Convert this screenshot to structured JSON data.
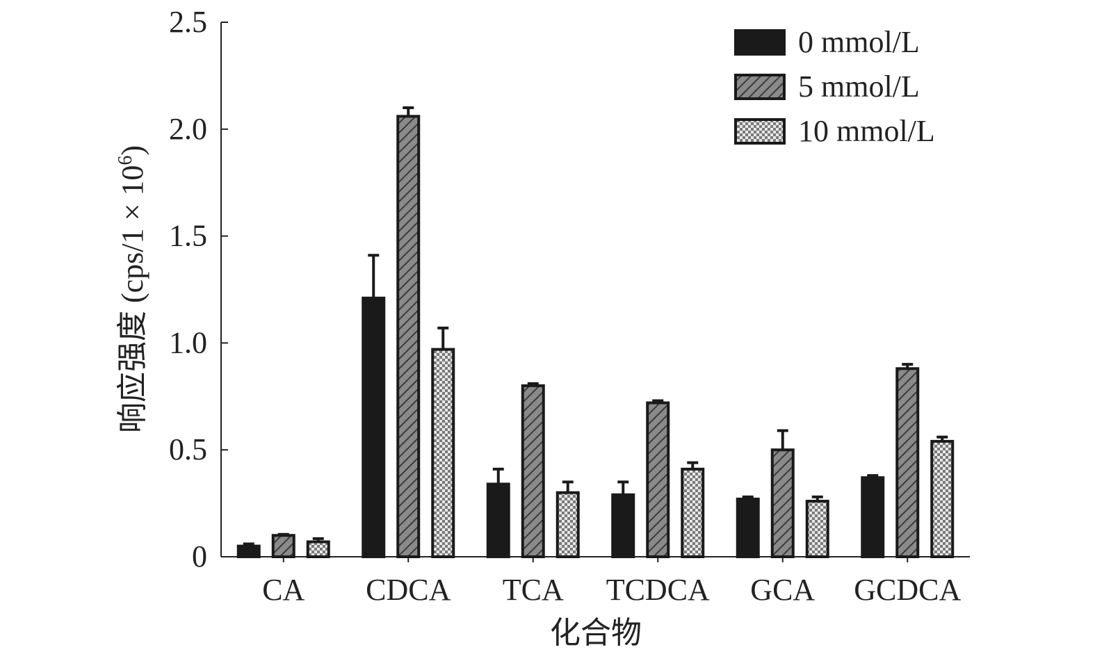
{
  "chart_data": {
    "type": "bar",
    "title": "",
    "xlabel": "化合物",
    "ylabel_main": "响应强度 (cps/1 × 10",
    "ylabel_sup": "6",
    "ylabel_close": ")",
    "ylim": [
      0,
      2.5
    ],
    "yticks": [
      0,
      0.5,
      1.0,
      1.5,
      2.0,
      2.5
    ],
    "ytick_labels": [
      "0",
      "0.5",
      "1.0",
      "1.5",
      "2.0",
      "2.5"
    ],
    "grid": false,
    "legend_position": "top-right",
    "categories": [
      "CA",
      "CDCA",
      "TCA",
      "TCDCA",
      "GCA",
      "GCDCA"
    ],
    "series": [
      {
        "name": "0 mmol/L",
        "pattern": "solid",
        "color": "#1a1a1a",
        "values": [
          0.05,
          1.21,
          0.34,
          0.29,
          0.27,
          0.37
        ],
        "errors": [
          0.01,
          0.2,
          0.07,
          0.06,
          0.01,
          0.01
        ]
      },
      {
        "name": "5 mmol/L",
        "pattern": "diagonal-hatch",
        "color": "#777777",
        "values": [
          0.1,
          2.06,
          0.8,
          0.72,
          0.5,
          0.88
        ],
        "errors": [
          0.005,
          0.04,
          0.01,
          0.01,
          0.09,
          0.02
        ]
      },
      {
        "name": "10 mmol/L",
        "pattern": "checker",
        "color": "#999999",
        "values": [
          0.07,
          0.97,
          0.3,
          0.41,
          0.26,
          0.54
        ],
        "errors": [
          0.015,
          0.1,
          0.05,
          0.03,
          0.02,
          0.02
        ]
      }
    ]
  }
}
